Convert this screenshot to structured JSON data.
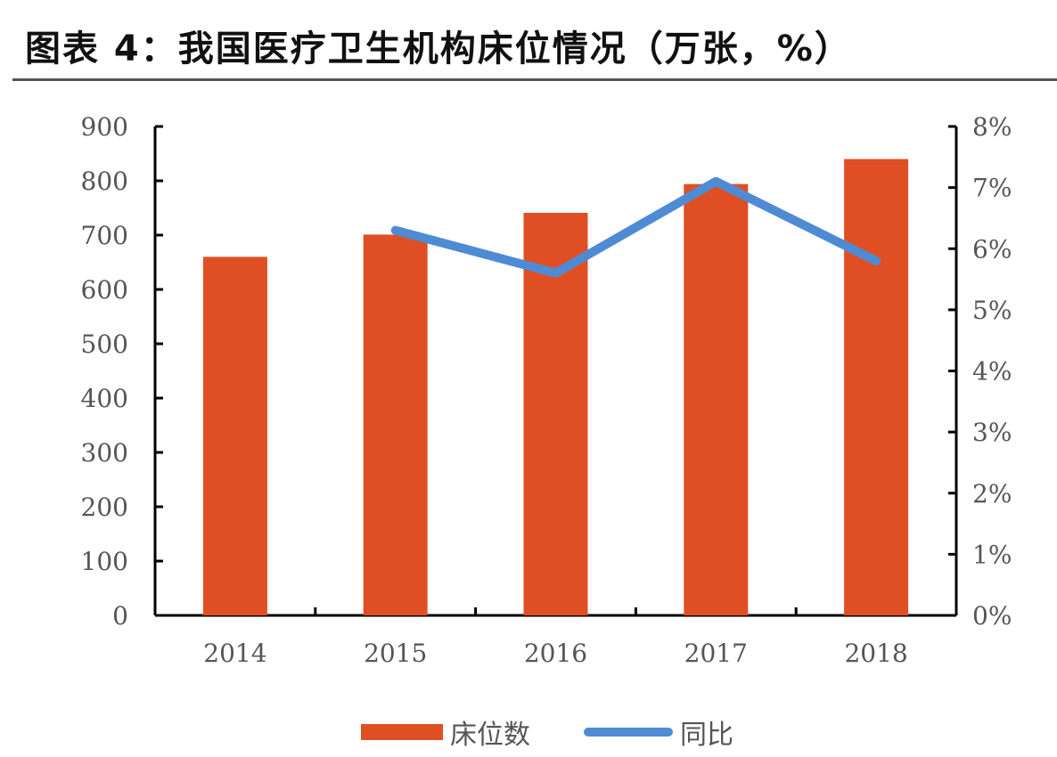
{
  "title": "图表 4：我国医疗卫生机构床位情况（万张，%）",
  "colors": {
    "bar": "#e04f23",
    "line": "#4f8bd4"
  },
  "legend": {
    "bar_label": "床位数",
    "line_label": "同比"
  },
  "chart_data": {
    "type": "bar",
    "title": "图表 4：我国医疗卫生机构床位情况（万张，%）",
    "categories": [
      "2014",
      "2015",
      "2016",
      "2017",
      "2018"
    ],
    "series": [
      {
        "name": "床位数",
        "type": "bar",
        "axis": "left",
        "values": [
          660,
          701,
          741,
          794,
          840
        ]
      },
      {
        "name": "同比",
        "type": "line",
        "axis": "right",
        "values": [
          null,
          6.3,
          5.6,
          7.1,
          5.8
        ]
      }
    ],
    "left_axis": {
      "ylim": [
        0,
        900
      ],
      "ticks": [
        "0",
        "100",
        "200",
        "300",
        "400",
        "500",
        "600",
        "700",
        "800",
        "900"
      ]
    },
    "right_axis": {
      "ylim": [
        0,
        8
      ],
      "ticks": [
        "0%",
        "1%",
        "2%",
        "3%",
        "4%",
        "5%",
        "6%",
        "7%",
        "8%"
      ]
    },
    "xlabel": "",
    "ylabel": "",
    "grid": false,
    "legend_position": "bottom"
  }
}
